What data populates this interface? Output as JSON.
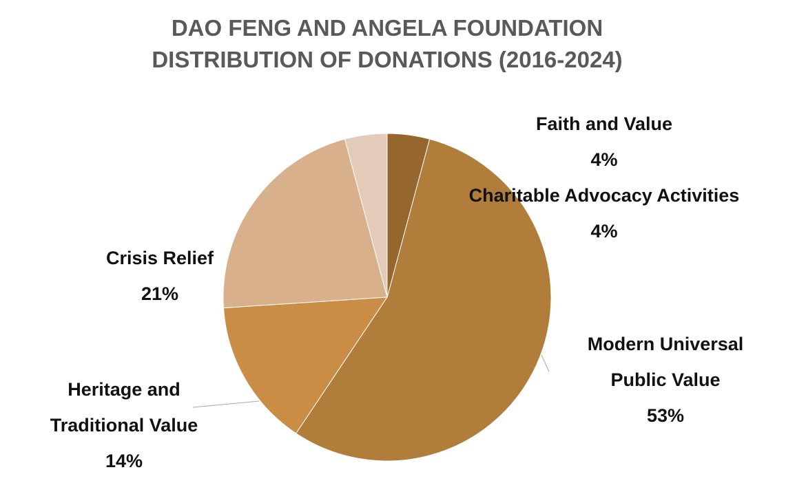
{
  "chart_data": {
    "type": "pie",
    "title": "DAO FENG AND ANGELA FOUNDATION",
    "subtitle": "DISTRIBUTION OF DONATIONS (2016-2024)",
    "categories": [
      "Faith and Value",
      "Modern Universal Public Value",
      "Heritage and Traditional Value",
      "Crisis Relief",
      "Charitable Advocacy Activities"
    ],
    "values": [
      4,
      53,
      14,
      21,
      4
    ],
    "value_labels": [
      "4%",
      "53%",
      "14%",
      "21%",
      "4%"
    ],
    "colors": [
      "#95672f",
      "#b07d3b",
      "#c98d45",
      "#d8b08b",
      "#e4cbb9"
    ]
  }
}
